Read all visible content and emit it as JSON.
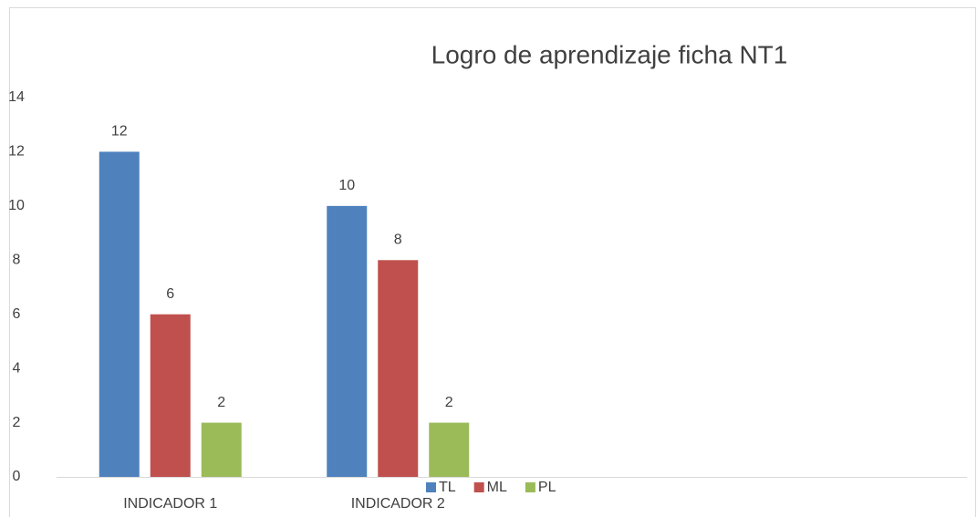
{
  "chart_data": {
    "type": "bar",
    "title": "Logro de aprendizaje ficha NT1",
    "categories": [
      "INDICADOR 1",
      "INDICADOR 2",
      null,
      null
    ],
    "series": [
      {
        "name": "TL",
        "color": "#4f81bd",
        "values": [
          12,
          10,
          null,
          null
        ]
      },
      {
        "name": "ML",
        "color": "#c0504d",
        "values": [
          6,
          8,
          null,
          null
        ]
      },
      {
        "name": "PL",
        "color": "#9bbb59",
        "values": [
          2,
          2,
          null,
          null
        ]
      }
    ],
    "ylim": [
      0,
      14
    ],
    "yticks": [
      0,
      2,
      4,
      6,
      8,
      10,
      12,
      14
    ],
    "grid": false,
    "legend": "bottom"
  }
}
